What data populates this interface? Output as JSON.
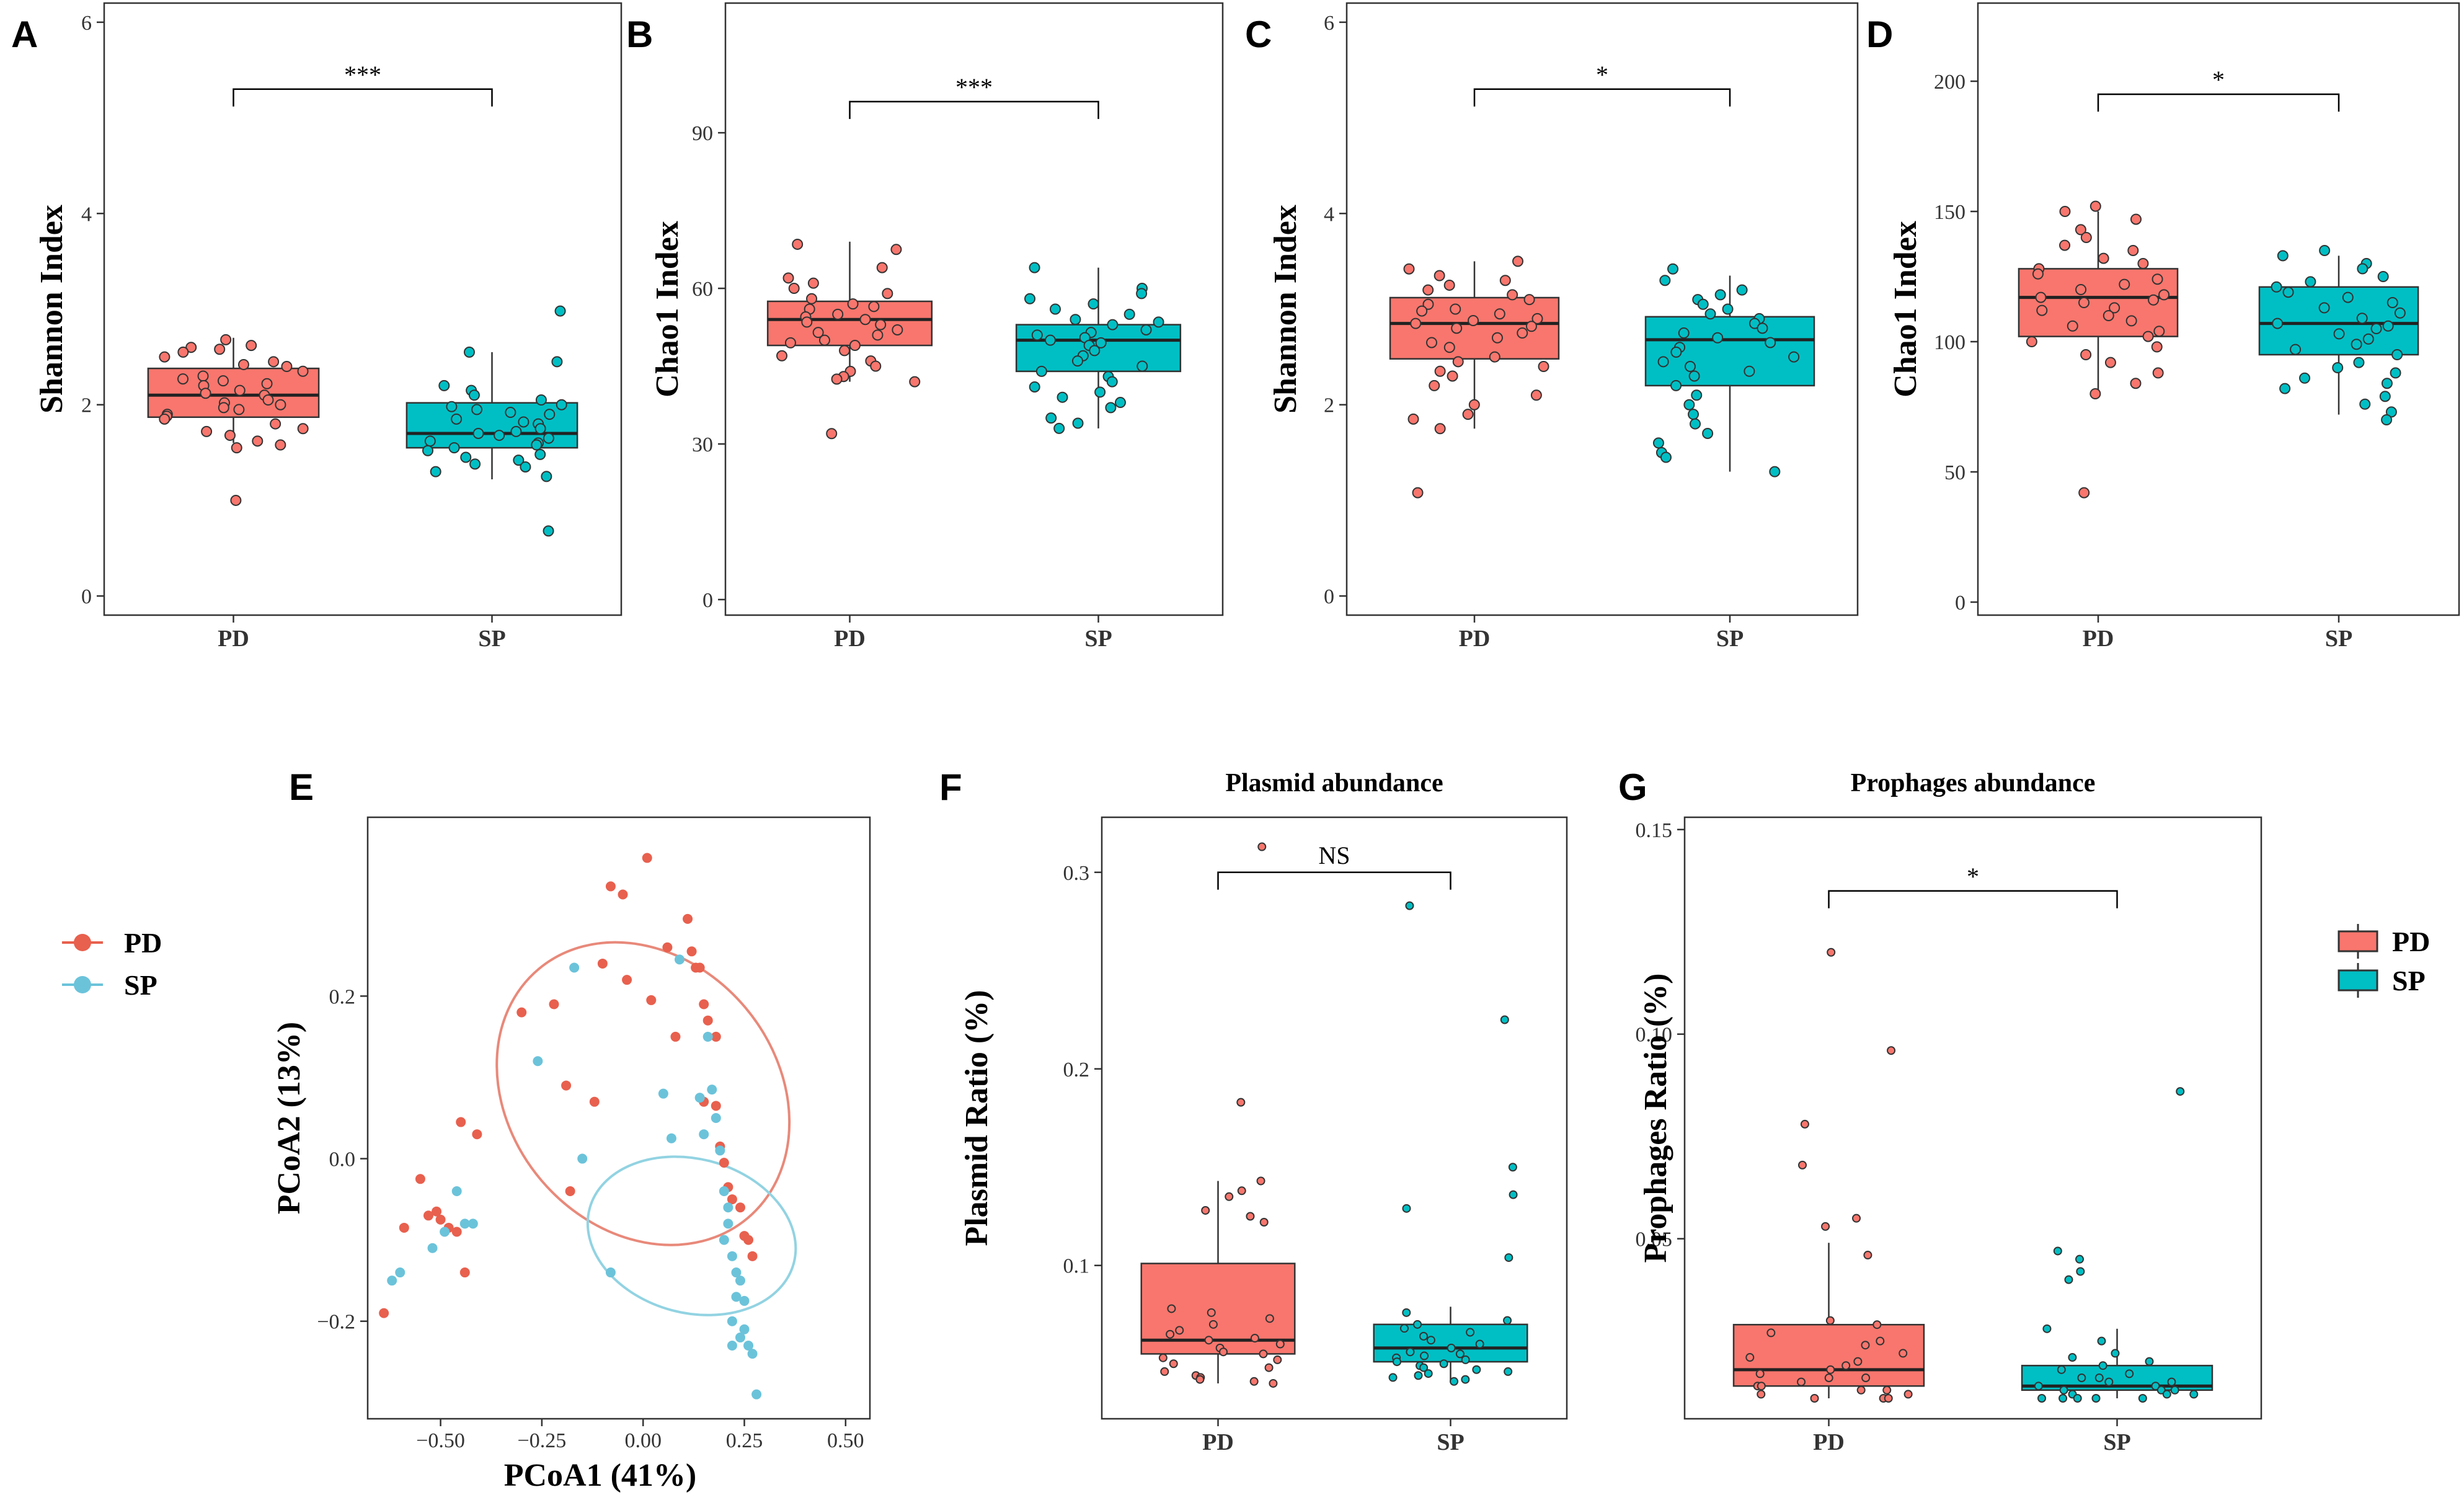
{
  "colors": {
    "PD": "#F8766D",
    "SP": "#00BFC4",
    "PD_pcoa": "#E8604E",
    "SP_pcoa": "#6BC3DA",
    "PD_ellipse": "#E8897A",
    "SP_ellipse": "#92D3E2"
  },
  "legend_pcoa": [
    "PD",
    "SP"
  ],
  "legend_box": [
    "PD",
    "SP"
  ],
  "chart_data": [
    {
      "id": "A",
      "letter": "A",
      "type": "box",
      "title": "",
      "ylabel": "Shannon Index",
      "ylim": [
        -0.2,
        6.2
      ],
      "yticks": [
        0,
        2,
        4,
        6
      ],
      "categories": [
        "PD",
        "SP"
      ],
      "series": [
        {
          "name": "PD",
          "q1": 1.87,
          "median": 2.1,
          "q3": 2.38,
          "whisker_low": 1.6,
          "whisker_high": 2.7,
          "points": [
            2.68,
            2.62,
            2.6,
            2.58,
            2.55,
            2.5,
            2.45,
            2.42,
            2.4,
            2.35,
            2.3,
            2.27,
            2.25,
            2.22,
            2.2,
            2.15,
            2.12,
            2.1,
            2.05,
            2.02,
            2.0,
            1.97,
            1.95,
            1.9,
            1.88,
            1.85,
            1.8,
            1.75,
            1.72,
            1.68,
            1.62,
            1.58,
            1.55,
            1.0
          ]
        },
        {
          "name": "SP",
          "q1": 1.55,
          "median": 1.7,
          "q3": 2.02,
          "whisker_low": 1.22,
          "whisker_high": 2.55,
          "points": [
            2.98,
            2.55,
            2.45,
            2.2,
            2.15,
            2.1,
            2.05,
            2.0,
            1.98,
            1.95,
            1.92,
            1.9,
            1.85,
            1.82,
            1.8,
            1.75,
            1.72,
            1.7,
            1.68,
            1.65,
            1.62,
            1.6,
            1.58,
            1.55,
            1.52,
            1.48,
            1.45,
            1.42,
            1.38,
            1.35,
            1.3,
            1.25,
            0.68
          ]
        }
      ],
      "sig": "***",
      "sig_y": 5.3
    },
    {
      "id": "B",
      "letter": "B",
      "type": "box",
      "title": "",
      "ylabel": "Chao1 Index",
      "ylim": [
        -3,
        115
      ],
      "yticks": [
        0,
        30,
        60,
        90
      ],
      "categories": [
        "PD",
        "SP"
      ],
      "series": [
        {
          "name": "PD",
          "q1": 49,
          "median": 54,
          "q3": 57.5,
          "whisker_low": 42,
          "whisker_high": 69,
          "points": [
            68.5,
            67.5,
            64,
            62,
            61,
            60,
            59,
            58,
            57,
            56.5,
            56,
            55,
            54.5,
            54,
            53.5,
            53,
            52,
            51.5,
            51,
            50,
            49.5,
            49,
            48,
            47,
            46,
            45,
            44,
            43,
            42.5,
            42,
            32
          ]
        },
        {
          "name": "SP",
          "q1": 44,
          "median": 50,
          "q3": 53,
          "whisker_low": 33,
          "whisker_high": 64,
          "points": [
            64,
            60,
            59,
            58,
            57,
            56,
            55,
            54,
            53.5,
            53,
            52,
            51.5,
            51,
            50.5,
            50,
            49.5,
            49,
            48,
            47,
            46,
            45,
            44,
            43,
            42,
            41,
            40,
            39,
            38,
            37,
            35,
            34,
            33
          ]
        }
      ],
      "sig": "***",
      "sig_y": 96
    },
    {
      "id": "C",
      "letter": "C",
      "type": "box",
      "title": "",
      "ylabel": "Shannon Index",
      "ylim": [
        -0.2,
        6.2
      ],
      "yticks": [
        0,
        2,
        4,
        6
      ],
      "categories": [
        "PD",
        "SP"
      ],
      "series": [
        {
          "name": "PD",
          "q1": 2.48,
          "median": 2.85,
          "q3": 3.12,
          "whisker_low": 1.75,
          "whisker_high": 3.5,
          "points": [
            3.5,
            3.42,
            3.35,
            3.3,
            3.25,
            3.2,
            3.15,
            3.1,
            3.05,
            3.0,
            2.98,
            2.95,
            2.9,
            2.88,
            2.85,
            2.82,
            2.8,
            2.75,
            2.7,
            2.65,
            2.6,
            2.5,
            2.45,
            2.4,
            2.35,
            2.3,
            2.2,
            2.1,
            2.0,
            1.9,
            1.85,
            1.75,
            1.08
          ]
        },
        {
          "name": "SP",
          "q1": 2.2,
          "median": 2.68,
          "q3": 2.92,
          "whisker_low": 1.3,
          "whisker_high": 3.35,
          "points": [
            3.42,
            3.3,
            3.2,
            3.15,
            3.1,
            3.05,
            3.0,
            2.95,
            2.9,
            2.85,
            2.8,
            2.75,
            2.7,
            2.65,
            2.6,
            2.55,
            2.5,
            2.45,
            2.4,
            2.35,
            2.3,
            2.2,
            2.1,
            2.0,
            1.9,
            1.8,
            1.7,
            1.6,
            1.5,
            1.45,
            1.3
          ]
        }
      ],
      "sig": "*",
      "sig_y": 5.3
    },
    {
      "id": "D",
      "letter": "D",
      "type": "box",
      "title": "",
      "ylabel": "Chao1 Index",
      "ylim": [
        -5,
        230
      ],
      "yticks": [
        0,
        50,
        100,
        150,
        200
      ],
      "categories": [
        "PD",
        "SP"
      ],
      "series": [
        {
          "name": "PD",
          "q1": 102,
          "median": 117,
          "q3": 128,
          "whisker_low": 80,
          "whisker_high": 150,
          "points": [
            152,
            150,
            147,
            143,
            140,
            137,
            135,
            132,
            130,
            128,
            126,
            124,
            122,
            120,
            118,
            117,
            116,
            115,
            113,
            112,
            110,
            108,
            106,
            104,
            102,
            100,
            98,
            95,
            92,
            88,
            84,
            80,
            42
          ]
        },
        {
          "name": "SP",
          "q1": 95,
          "median": 107,
          "q3": 121,
          "whisker_low": 72,
          "whisker_high": 133,
          "points": [
            135,
            133,
            130,
            128,
            125,
            123,
            121,
            119,
            117,
            115,
            113,
            111,
            109,
            107,
            106,
            105,
            103,
            101,
            99,
            97,
            95,
            92,
            90,
            88,
            86,
            84,
            82,
            79,
            76,
            73,
            70
          ]
        }
      ],
      "sig": "*",
      "sig_y": 195
    },
    {
      "id": "E",
      "letter": "E",
      "type": "scatter",
      "title": "",
      "xlabel": "PCoA1 (41%)",
      "ylabel": "PCoA2 (13%)",
      "xlim": [
        -0.68,
        0.56
      ],
      "ylim": [
        -0.32,
        0.42
      ],
      "xticks": [
        -0.5,
        -0.25,
        0.0,
        0.25,
        0.5
      ],
      "xtick_labels": [
        "−0.50",
        "−0.25",
        "0.00",
        "0.25",
        "0.50"
      ],
      "yticks": [
        -0.2,
        0.0,
        0.2
      ],
      "ytick_labels": [
        "−0.2",
        "0.0",
        "0.2"
      ],
      "series": [
        {
          "name": "PD",
          "points": [
            [
              -0.64,
              -0.19
            ],
            [
              -0.59,
              -0.085
            ],
            [
              -0.55,
              -0.025
            ],
            [
              -0.53,
              -0.07
            ],
            [
              -0.51,
              -0.065
            ],
            [
              -0.5,
              -0.075
            ],
            [
              -0.48,
              -0.085
            ],
            [
              -0.46,
              -0.09
            ],
            [
              -0.44,
              -0.14
            ],
            [
              -0.45,
              0.045
            ],
            [
              -0.41,
              0.03
            ],
            [
              -0.3,
              0.18
            ],
            [
              -0.22,
              0.19
            ],
            [
              -0.19,
              0.09
            ],
            [
              -0.18,
              -0.04
            ],
            [
              -0.12,
              0.07
            ],
            [
              -0.1,
              0.24
            ],
            [
              -0.08,
              0.335
            ],
            [
              -0.05,
              0.325
            ],
            [
              -0.04,
              0.22
            ],
            [
              0.01,
              0.37
            ],
            [
              0.02,
              0.195
            ],
            [
              0.06,
              0.26
            ],
            [
              0.08,
              0.15
            ],
            [
              0.11,
              0.295
            ],
            [
              0.12,
              0.255
            ],
            [
              0.13,
              0.235
            ],
            [
              0.14,
              0.235
            ],
            [
              0.15,
              0.19
            ],
            [
              0.16,
              0.17
            ],
            [
              0.18,
              0.15
            ],
            [
              0.19,
              0.015
            ],
            [
              0.2,
              -0.005
            ],
            [
              0.21,
              -0.035
            ],
            [
              0.22,
              -0.05
            ],
            [
              0.24,
              -0.06
            ],
            [
              0.25,
              -0.095
            ],
            [
              0.26,
              -0.1
            ],
            [
              0.27,
              -0.12
            ],
            [
              0.15,
              0.07
            ],
            [
              0.18,
              0.065
            ]
          ]
        },
        {
          "name": "SP",
          "points": [
            [
              -0.62,
              -0.15
            ],
            [
              -0.6,
              -0.14
            ],
            [
              -0.52,
              -0.11
            ],
            [
              -0.49,
              -0.09
            ],
            [
              -0.46,
              -0.04
            ],
            [
              -0.42,
              -0.08
            ],
            [
              -0.44,
              -0.08
            ],
            [
              -0.26,
              0.12
            ],
            [
              -0.17,
              0.235
            ],
            [
              -0.15,
              0.0
            ],
            [
              -0.08,
              -0.14
            ],
            [
              0.05,
              0.08
            ],
            [
              0.07,
              0.025
            ],
            [
              0.09,
              0.245
            ],
            [
              0.14,
              0.075
            ],
            [
              0.15,
              0.03
            ],
            [
              0.16,
              0.15
            ],
            [
              0.17,
              0.085
            ],
            [
              0.18,
              0.05
            ],
            [
              0.19,
              0.01
            ],
            [
              0.2,
              -0.04
            ],
            [
              0.21,
              -0.06
            ],
            [
              0.22,
              -0.12
            ],
            [
              0.23,
              -0.14
            ],
            [
              0.24,
              -0.15
            ],
            [
              0.22,
              -0.2
            ],
            [
              0.25,
              -0.21
            ],
            [
              0.26,
              -0.23
            ],
            [
              0.27,
              -0.24
            ],
            [
              0.28,
              -0.29
            ],
            [
              0.22,
              -0.23
            ],
            [
              0.24,
              -0.22
            ],
            [
              0.2,
              -0.1
            ],
            [
              0.23,
              -0.17
            ],
            [
              0.25,
              -0.175
            ],
            [
              0.21,
              -0.08
            ]
          ]
        }
      ],
      "ellipses": [
        {
          "name": "PD",
          "cx": 0.0,
          "cy": 0.08,
          "rx": 0.33,
          "ry": 0.2,
          "angle_deg": 40
        },
        {
          "name": "SP",
          "cx": 0.12,
          "cy": -0.095,
          "rx": 0.19,
          "ry": 0.13,
          "angle_deg": 75
        }
      ]
    },
    {
      "id": "F",
      "letter": "F",
      "type": "box",
      "title": "Plasmid abundance",
      "ylabel": "Plasmid Ratio (%)",
      "ylim": [
        0.022,
        0.328
      ],
      "yticks": [
        0.1,
        0.2,
        0.3
      ],
      "ytick_labels": [
        "0.1",
        "0.2",
        "0.3"
      ],
      "categories": [
        "PD",
        "SP"
      ],
      "series": [
        {
          "name": "PD",
          "q1": 0.055,
          "median": 0.062,
          "q3": 0.101,
          "whisker_low": 0.04,
          "whisker_high": 0.143,
          "points": [
            0.313,
            0.183,
            0.143,
            0.138,
            0.135,
            0.128,
            0.125,
            0.122,
            0.078,
            0.076,
            0.073,
            0.07,
            0.067,
            0.065,
            0.063,
            0.062,
            0.06,
            0.058,
            0.056,
            0.055,
            0.053,
            0.052,
            0.05,
            0.048,
            0.046,
            0.044,
            0.043,
            0.042,
            0.041,
            0.04
          ]
        },
        {
          "name": "SP",
          "q1": 0.051,
          "median": 0.058,
          "q3": 0.07,
          "whisker_low": 0.041,
          "whisker_high": 0.079,
          "points": [
            0.283,
            0.225,
            0.15,
            0.136,
            0.129,
            0.104,
            0.076,
            0.072,
            0.07,
            0.068,
            0.066,
            0.064,
            0.062,
            0.06,
            0.058,
            0.056,
            0.055,
            0.054,
            0.053,
            0.052,
            0.051,
            0.05,
            0.049,
            0.048,
            0.047,
            0.046,
            0.045,
            0.044,
            0.043,
            0.042,
            0.041
          ]
        }
      ],
      "sig": "NS",
      "sig_y": 0.3
    },
    {
      "id": "G",
      "letter": "G",
      "type": "box",
      "title": "Prophages abundance",
      "ylabel": "Prophages Ratio (%)",
      "ylim": [
        0.006,
        0.153
      ],
      "yticks": [
        0.05,
        0.1,
        0.15
      ],
      "ytick_labels": [
        "0.05",
        "0.10",
        "0.15"
      ],
      "categories": [
        "PD",
        "SP"
      ],
      "series": [
        {
          "name": "PD",
          "q1": 0.014,
          "median": 0.018,
          "q3": 0.029,
          "whisker_low": 0.011,
          "whisker_high": 0.049,
          "points": [
            0.12,
            0.096,
            0.078,
            0.068,
            0.055,
            0.053,
            0.046,
            0.03,
            0.029,
            0.027,
            0.025,
            0.024,
            0.022,
            0.021,
            0.02,
            0.019,
            0.018,
            0.017,
            0.016,
            0.016,
            0.015,
            0.014,
            0.014,
            0.013,
            0.013,
            0.012,
            0.012,
            0.011,
            0.011,
            0.011
          ]
        },
        {
          "name": "SP",
          "q1": 0.013,
          "median": 0.014,
          "q3": 0.019,
          "whisker_low": 0.011,
          "whisker_high": 0.028,
          "points": [
            0.086,
            0.047,
            0.045,
            0.042,
            0.04,
            0.028,
            0.025,
            0.022,
            0.021,
            0.02,
            0.019,
            0.018,
            0.017,
            0.016,
            0.016,
            0.015,
            0.015,
            0.014,
            0.014,
            0.013,
            0.013,
            0.013,
            0.012,
            0.012,
            0.012,
            0.011,
            0.011,
            0.011,
            0.011,
            0.011
          ]
        }
      ],
      "sig": "*",
      "sig_y": 0.135
    }
  ]
}
